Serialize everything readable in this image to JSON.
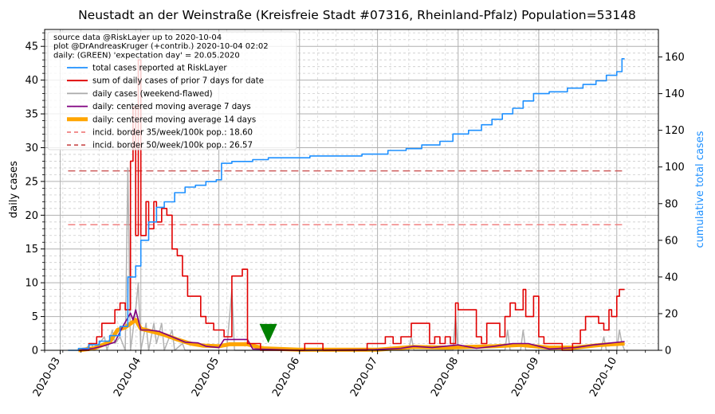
{
  "chart_data": {
    "type": "line",
    "title": "Neustadt an der Weinstraße (Kreisfreie Stadt #07316, Rheinland-Pfalz) Population=53148",
    "ylabel_left": "daily cases",
    "ylabel_right": "cumulative total cases",
    "ylim_left": [
      0,
      47.5
    ],
    "ylim_right": [
      0,
      175
    ],
    "yticks_left": [
      "0",
      "5",
      "10",
      "15",
      "20",
      "25",
      "30",
      "35",
      "40",
      "45"
    ],
    "yticks_right": [
      "0",
      "20",
      "40",
      "60",
      "80",
      "100",
      "120",
      "140",
      "160"
    ],
    "xticks": [
      "2020-03",
      "2020-04",
      "2020-05",
      "2020-06",
      "2020-07",
      "2020-08",
      "2020-09",
      "2020-10"
    ],
    "grid": true,
    "legend_position": "top-left",
    "annotation": {
      "lines": [
        "source data @RiskLayer up to 2020-10-04",
        "plot @DrAndreasKruger (+contrib.) 2020-10-04 02:02",
        "daily: (GREEN) 'expectation day' = 20.05.2020"
      ]
    },
    "expectation_marker": {
      "date": "2020-05-20",
      "value": 1.2,
      "color": "#008000"
    },
    "series": [
      {
        "name": "total cases reported at RiskLayer",
        "color": "#1e90ff",
        "axis": "right",
        "points": [
          [
            "2020-03-04",
            0
          ],
          [
            "2020-03-08",
            1
          ],
          [
            "2020-03-12",
            3
          ],
          [
            "2020-03-16",
            5
          ],
          [
            "2020-03-20",
            8
          ],
          [
            "2020-03-24",
            13
          ],
          [
            "2020-03-27",
            40
          ],
          [
            "2020-03-30",
            46
          ],
          [
            "2020-04-01",
            60
          ],
          [
            "2020-04-04",
            70
          ],
          [
            "2020-04-07",
            78
          ],
          [
            "2020-04-10",
            81
          ],
          [
            "2020-04-14",
            86
          ],
          [
            "2020-04-18",
            89
          ],
          [
            "2020-04-22",
            90
          ],
          [
            "2020-04-26",
            92
          ],
          [
            "2020-04-30",
            93
          ],
          [
            "2020-05-02",
            102
          ],
          [
            "2020-05-06",
            103
          ],
          [
            "2020-05-10",
            103
          ],
          [
            "2020-05-14",
            104
          ],
          [
            "2020-05-20",
            105
          ],
          [
            "2020-06-05",
            106
          ],
          [
            "2020-06-25",
            107
          ],
          [
            "2020-07-05",
            109
          ],
          [
            "2020-07-12",
            110
          ],
          [
            "2020-07-18",
            112
          ],
          [
            "2020-07-25",
            114
          ],
          [
            "2020-07-30",
            118
          ],
          [
            "2020-08-05",
            120
          ],
          [
            "2020-08-10",
            123
          ],
          [
            "2020-08-14",
            126
          ],
          [
            "2020-08-18",
            129
          ],
          [
            "2020-08-22",
            132
          ],
          [
            "2020-08-26",
            136
          ],
          [
            "2020-08-30",
            140
          ],
          [
            "2020-09-05",
            141
          ],
          [
            "2020-09-12",
            143
          ],
          [
            "2020-09-18",
            145
          ],
          [
            "2020-09-23",
            147
          ],
          [
            "2020-09-27",
            150
          ],
          [
            "2020-10-01",
            152
          ],
          [
            "2020-10-03",
            159
          ],
          [
            "2020-10-04",
            159
          ]
        ]
      },
      {
        "name": "sum of daily cases of prior 7 days for date",
        "color": "#e00000",
        "axis": "left",
        "points": [
          [
            "2020-03-08",
            0
          ],
          [
            "2020-03-12",
            1
          ],
          [
            "2020-03-15",
            2
          ],
          [
            "2020-03-17",
            4
          ],
          [
            "2020-03-20",
            4
          ],
          [
            "2020-03-22",
            6
          ],
          [
            "2020-03-24",
            7
          ],
          [
            "2020-03-26",
            6
          ],
          [
            "2020-03-28",
            28
          ],
          [
            "2020-03-29",
            36
          ],
          [
            "2020-03-30",
            17
          ],
          [
            "2020-03-31",
            43
          ],
          [
            "2020-04-01",
            17
          ],
          [
            "2020-04-03",
            22
          ],
          [
            "2020-04-04",
            18
          ],
          [
            "2020-04-06",
            22
          ],
          [
            "2020-04-07",
            19
          ],
          [
            "2020-04-09",
            21
          ],
          [
            "2020-04-11",
            20
          ],
          [
            "2020-04-13",
            15
          ],
          [
            "2020-04-15",
            14
          ],
          [
            "2020-04-17",
            11
          ],
          [
            "2020-04-19",
            8
          ],
          [
            "2020-04-23",
            8
          ],
          [
            "2020-04-24",
            5
          ],
          [
            "2020-04-26",
            4
          ],
          [
            "2020-04-29",
            3
          ],
          [
            "2020-05-01",
            3
          ],
          [
            "2020-05-03",
            2
          ],
          [
            "2020-05-06",
            11
          ],
          [
            "2020-05-10",
            12
          ],
          [
            "2020-05-12",
            1
          ],
          [
            "2020-05-17",
            0
          ],
          [
            "2020-05-30",
            0
          ],
          [
            "2020-06-03",
            1
          ],
          [
            "2020-06-08",
            1
          ],
          [
            "2020-06-10",
            0
          ],
          [
            "2020-06-25",
            0
          ],
          [
            "2020-06-27",
            1
          ],
          [
            "2020-07-02",
            1
          ],
          [
            "2020-07-04",
            2
          ],
          [
            "2020-07-07",
            1
          ],
          [
            "2020-07-10",
            2
          ],
          [
            "2020-07-12",
            2
          ],
          [
            "2020-07-14",
            4
          ],
          [
            "2020-07-19",
            4
          ],
          [
            "2020-07-21",
            1
          ],
          [
            "2020-07-23",
            2
          ],
          [
            "2020-07-25",
            1
          ],
          [
            "2020-07-27",
            2
          ],
          [
            "2020-07-29",
            1
          ],
          [
            "2020-07-31",
            7
          ],
          [
            "2020-08-01",
            6
          ],
          [
            "2020-08-06",
            6
          ],
          [
            "2020-08-08",
            2
          ],
          [
            "2020-08-10",
            1
          ],
          [
            "2020-08-12",
            4
          ],
          [
            "2020-08-15",
            4
          ],
          [
            "2020-08-17",
            2
          ],
          [
            "2020-08-19",
            5
          ],
          [
            "2020-08-21",
            7
          ],
          [
            "2020-08-23",
            6
          ],
          [
            "2020-08-25",
            6
          ],
          [
            "2020-08-26",
            9
          ],
          [
            "2020-08-27",
            5
          ],
          [
            "2020-08-30",
            8
          ],
          [
            "2020-09-01",
            2
          ],
          [
            "2020-09-03",
            1
          ],
          [
            "2020-09-08",
            1
          ],
          [
            "2020-09-10",
            0
          ],
          [
            "2020-09-14",
            1
          ],
          [
            "2020-09-17",
            3
          ],
          [
            "2020-09-19",
            5
          ],
          [
            "2020-09-22",
            5
          ],
          [
            "2020-09-24",
            4
          ],
          [
            "2020-09-26",
            3
          ],
          [
            "2020-09-28",
            6
          ],
          [
            "2020-09-29",
            5
          ],
          [
            "2020-10-01",
            8
          ],
          [
            "2020-10-02",
            9
          ],
          [
            "2020-10-04",
            9
          ]
        ]
      },
      {
        "name": "daily cases (weekend-flawed)",
        "color": "#aaaaaa",
        "axis": "left",
        "points": [
          [
            "2020-03-10",
            0
          ],
          [
            "2020-03-13",
            1
          ],
          [
            "2020-03-14",
            0
          ],
          [
            "2020-03-18",
            2
          ],
          [
            "2020-03-19",
            0
          ],
          [
            "2020-03-21",
            3
          ],
          [
            "2020-03-22",
            1
          ],
          [
            "2020-03-24",
            2
          ],
          [
            "2020-03-26",
            0
          ],
          [
            "2020-03-27",
            27
          ],
          [
            "2020-03-28",
            0
          ],
          [
            "2020-03-30",
            6
          ],
          [
            "2020-03-31",
            10
          ],
          [
            "2020-04-01",
            0
          ],
          [
            "2020-04-03",
            4
          ],
          [
            "2020-04-04",
            0
          ],
          [
            "2020-04-06",
            4
          ],
          [
            "2020-04-07",
            1
          ],
          [
            "2020-04-09",
            4
          ],
          [
            "2020-04-10",
            0
          ],
          [
            "2020-04-13",
            3
          ],
          [
            "2020-04-14",
            0
          ],
          [
            "2020-04-17",
            1
          ],
          [
            "2020-04-18",
            0
          ],
          [
            "2020-05-04",
            0
          ],
          [
            "2020-05-06",
            9
          ],
          [
            "2020-05-07",
            0
          ],
          [
            "2020-05-25",
            0
          ],
          [
            "2020-07-13",
            0
          ],
          [
            "2020-07-14",
            2
          ],
          [
            "2020-07-15",
            0
          ],
          [
            "2020-07-30",
            0
          ],
          [
            "2020-07-31",
            5
          ],
          [
            "2020-08-01",
            0
          ],
          [
            "2020-08-19",
            0
          ],
          [
            "2020-08-20",
            3
          ],
          [
            "2020-08-21",
            0
          ],
          [
            "2020-08-25",
            0
          ],
          [
            "2020-08-26",
            3
          ],
          [
            "2020-08-27",
            0
          ],
          [
            "2020-09-25",
            0
          ],
          [
            "2020-09-26",
            2
          ],
          [
            "2020-09-27",
            0
          ],
          [
            "2020-10-01",
            0
          ],
          [
            "2020-10-02",
            3
          ],
          [
            "2020-10-03",
            1
          ],
          [
            "2020-10-04",
            0
          ]
        ]
      },
      {
        "name": "daily: centered moving average 7 days",
        "color": "#800080",
        "axis": "left",
        "points": [
          [
            "2020-03-08",
            0
          ],
          [
            "2020-03-14",
            0.3
          ],
          [
            "2020-03-18",
            0.7
          ],
          [
            "2020-03-22",
            1.2
          ],
          [
            "2020-03-25",
            3.5
          ],
          [
            "2020-03-28",
            5.5
          ],
          [
            "2020-03-29",
            4.5
          ],
          [
            "2020-03-30",
            6
          ],
          [
            "2020-04-01",
            3
          ],
          [
            "2020-04-04",
            3
          ],
          [
            "2020-04-08",
            2.8
          ],
          [
            "2020-04-13",
            2
          ],
          [
            "2020-04-18",
            1.2
          ],
          [
            "2020-04-23",
            1.1
          ],
          [
            "2020-04-26",
            0.6
          ],
          [
            "2020-05-01",
            0.4
          ],
          [
            "2020-05-03",
            1.6
          ],
          [
            "2020-05-12",
            1.6
          ],
          [
            "2020-05-14",
            0.2
          ],
          [
            "2020-06-01",
            0
          ],
          [
            "2020-06-30",
            0.1
          ],
          [
            "2020-07-10",
            0.3
          ],
          [
            "2020-07-15",
            0.6
          ],
          [
            "2020-07-22",
            0.4
          ],
          [
            "2020-08-01",
            0.8
          ],
          [
            "2020-08-08",
            0.3
          ],
          [
            "2020-08-15",
            0.6
          ],
          [
            "2020-08-22",
            1
          ],
          [
            "2020-08-28",
            1
          ],
          [
            "2020-09-05",
            0.2
          ],
          [
            "2020-09-15",
            0.4
          ],
          [
            "2020-09-22",
            0.8
          ],
          [
            "2020-09-29",
            1.1
          ],
          [
            "2020-10-04",
            1.3
          ]
        ]
      },
      {
        "name": "daily: centered moving average 14 days",
        "color": "#ffa500",
        "axis": "left",
        "points": [
          [
            "2020-03-08",
            0
          ],
          [
            "2020-03-14",
            0.3
          ],
          [
            "2020-03-20",
            1.2
          ],
          [
            "2020-03-23",
            3
          ],
          [
            "2020-03-26",
            3.4
          ],
          [
            "2020-03-30",
            4.5
          ],
          [
            "2020-04-01",
            3.2
          ],
          [
            "2020-04-05",
            2.8
          ],
          [
            "2020-04-10",
            2.3
          ],
          [
            "2020-04-15",
            1.6
          ],
          [
            "2020-04-20",
            1
          ],
          [
            "2020-04-25",
            0.7
          ],
          [
            "2020-05-01",
            0.6
          ],
          [
            "2020-05-05",
            0.9
          ],
          [
            "2020-05-12",
            0.9
          ],
          [
            "2020-05-18",
            0.3
          ],
          [
            "2020-06-01",
            0.1
          ],
          [
            "2020-07-01",
            0.1
          ],
          [
            "2020-07-15",
            0.5
          ],
          [
            "2020-07-28",
            0.4
          ],
          [
            "2020-08-05",
            0.5
          ],
          [
            "2020-08-15",
            0.6
          ],
          [
            "2020-08-25",
            0.8
          ],
          [
            "2020-09-05",
            0.4
          ],
          [
            "2020-09-15",
            0.4
          ],
          [
            "2020-09-25",
            0.8
          ],
          [
            "2020-10-04",
            1
          ]
        ]
      },
      {
        "name": "incid. border 35/week/100k pop.: 18.60",
        "color": "#f08080",
        "axis": "left",
        "style": "dashed",
        "points": [
          [
            "2020-03-04",
            18.6
          ],
          [
            "2020-10-04",
            18.6
          ]
        ]
      },
      {
        "name": "incid. border 50/week/100k pop.: 26.57",
        "color": "#cd5c5c",
        "axis": "left",
        "style": "dashed",
        "points": [
          [
            "2020-03-04",
            26.57
          ],
          [
            "2020-10-04",
            26.57
          ]
        ]
      }
    ]
  }
}
